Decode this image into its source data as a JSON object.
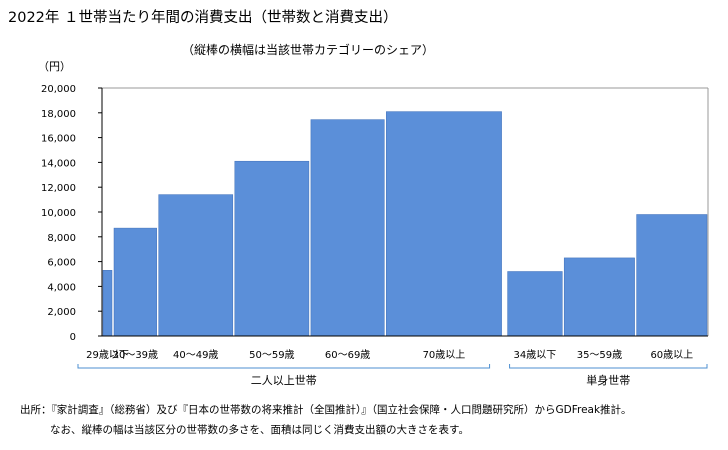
{
  "title": "2022年 １世帯当たり年間の消費支出（世帯数と消費支出）",
  "subtitle": "（縦棒の横幅は当該世帯カテゴリーのシェア）",
  "unit": "（円）",
  "source": {
    "line1": "出所：『家計調査』（総務省）及び『日本の世帯数の将来推計（全国推計）』（国立社会保障・人口問題研究所）からGDFreak推計。",
    "line2": "なお、縦棒の幅は当該区分の世帯数の多さを、面積は同じく消費支出額の大きさを表す。"
  },
  "colors": {
    "bar": "#5b8fd9",
    "bar_edge": "#3f6fb8",
    "axis": "#000000",
    "group": "#4d8fd0"
  },
  "chart_data": {
    "type": "bar",
    "variable_width": true,
    "yticks": [
      "0",
      "2,000",
      "4,000",
      "6,000",
      "8,000",
      "10,000",
      "12,000",
      "14,000",
      "16,000",
      "18,000",
      "20,000"
    ],
    "ylim": [
      0,
      20000
    ],
    "grid": false,
    "categories": [
      "29歳以下",
      "30～39歳",
      "40～49歳",
      "50～59歳",
      "60～69歳",
      "70歳以上",
      "34歳以下",
      "35～59歳",
      "60歳以上"
    ],
    "values": [
      5300,
      8700,
      11400,
      14100,
      17450,
      18100,
      5200,
      6300,
      9800
    ],
    "share": [
      0.012,
      0.057,
      0.099,
      0.099,
      0.098,
      0.154,
      0.073,
      0.094,
      0.094
    ],
    "groups": [
      {
        "label": "二人以上世帯",
        "first": 0,
        "last": 5
      },
      {
        "label": "単身世帯",
        "first": 6,
        "last": 8
      }
    ]
  }
}
